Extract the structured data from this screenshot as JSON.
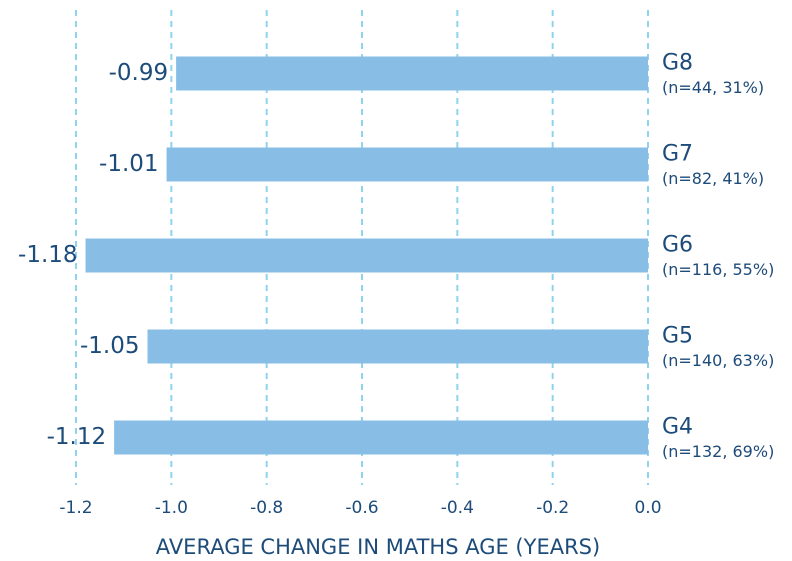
{
  "chart_data": {
    "type": "bar",
    "orientation": "horizontal",
    "x_label": "AVERAGE CHANGE IN MATHS AGE (YEARS)",
    "categories": [
      "G8",
      "G7",
      "G6",
      "G5",
      "G4"
    ],
    "category_notes": [
      "(n=44, 31%)",
      "(n=82, 41%)",
      "(n=116, 55%)",
      "(n=140, 63%)",
      "(n=132, 69%)"
    ],
    "values": [
      -0.99,
      -1.01,
      -1.18,
      -1.05,
      -1.12
    ],
    "color": "#88bde6",
    "xlim": [
      -1.2,
      0
    ],
    "xticks": [
      -1.2,
      {
        "value": -1,
        "label": "-1.0"
      },
      -0.8,
      -0.6,
      -0.4,
      -0.2,
      {
        "value": 0,
        "label": "0.0"
      }
    ],
    "grid": true
  }
}
